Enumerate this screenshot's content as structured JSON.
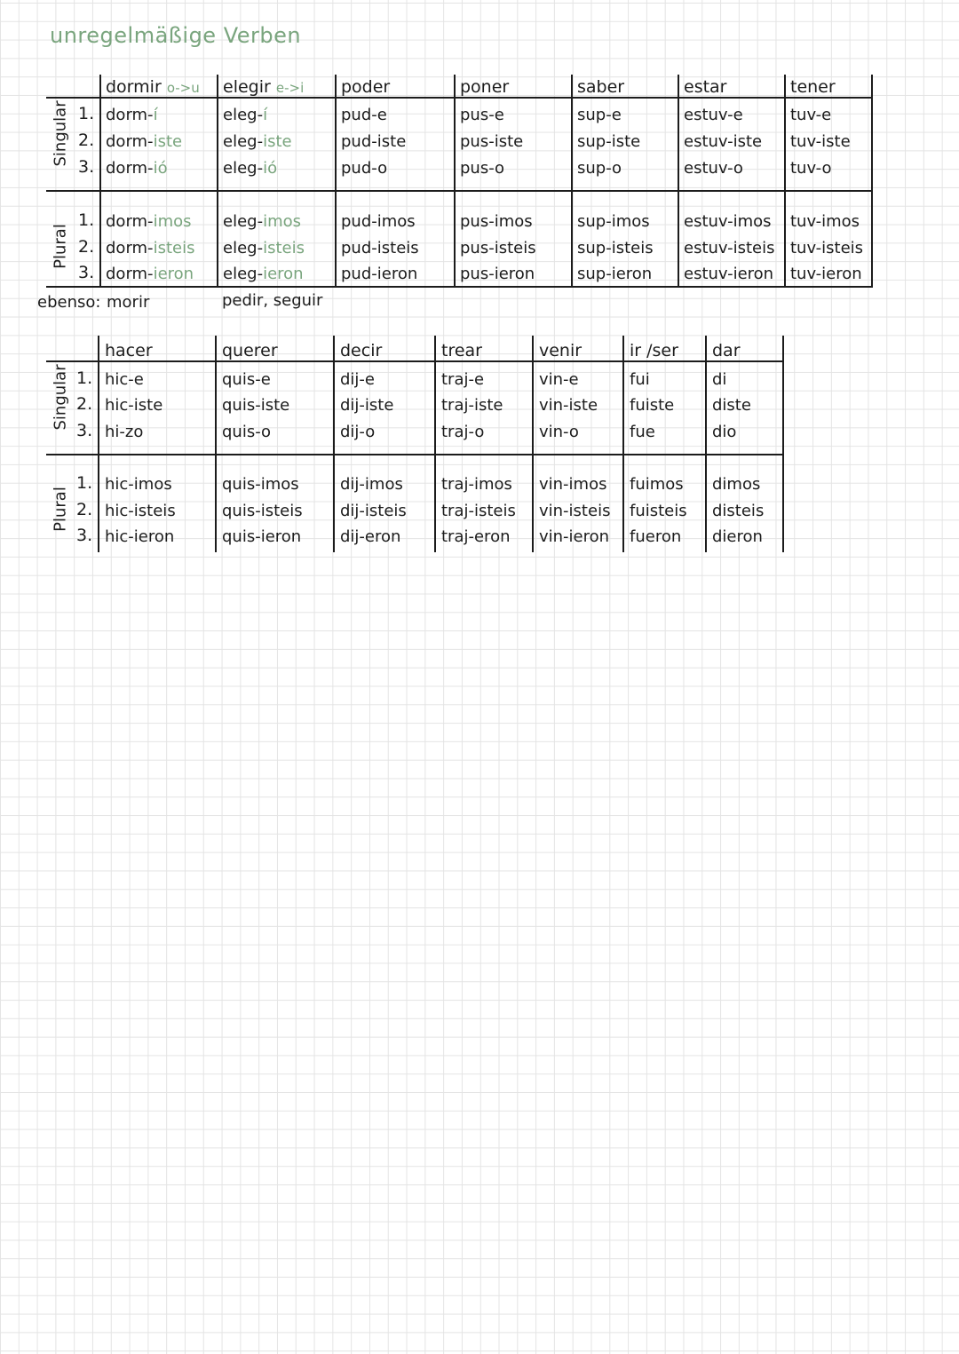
{
  "title": "unregelmäßige Verben",
  "colors": {
    "ink": "#1c1c1c",
    "accent": "#7aa57e"
  },
  "row_labels": {
    "singular": "Singular",
    "plural": "Plural",
    "numbers": [
      "1.",
      "2.",
      "3."
    ]
  },
  "table1": {
    "verbs": [
      {
        "name": "dormir",
        "note": "o->u",
        "forms": [
          [
            "dorm-",
            "í"
          ],
          [
            "dorm-",
            "iste"
          ],
          [
            "dorm-",
            "ió"
          ],
          [
            "dorm-",
            "imos"
          ],
          [
            "dorm-",
            "isteis"
          ],
          [
            "dorm-",
            "ieron"
          ]
        ]
      },
      {
        "name": "elegir",
        "note": "e->i",
        "forms": [
          [
            "eleg-",
            "í"
          ],
          [
            "eleg-",
            "iste"
          ],
          [
            "eleg-",
            "ió"
          ],
          [
            "eleg-",
            "imos"
          ],
          [
            "eleg-",
            "isteis"
          ],
          [
            "eleg-",
            "ieron"
          ]
        ]
      },
      {
        "name": "poder",
        "note": "",
        "forms": [
          [
            "pud-e",
            ""
          ],
          [
            "pud-iste",
            ""
          ],
          [
            "pud-o",
            ""
          ],
          [
            "pud-imos",
            ""
          ],
          [
            "pud-isteis",
            ""
          ],
          [
            "pud-ieron",
            ""
          ]
        ]
      },
      {
        "name": "poner",
        "note": "",
        "forms": [
          [
            "pus-e",
            ""
          ],
          [
            "pus-iste",
            ""
          ],
          [
            "pus-o",
            ""
          ],
          [
            "pus-imos",
            ""
          ],
          [
            "pus-isteis",
            ""
          ],
          [
            "pus-ieron",
            ""
          ]
        ]
      },
      {
        "name": "saber",
        "note": "",
        "forms": [
          [
            "sup-e",
            ""
          ],
          [
            "sup-iste",
            ""
          ],
          [
            "sup-o",
            ""
          ],
          [
            "sup-imos",
            ""
          ],
          [
            "sup-isteis",
            ""
          ],
          [
            "sup-ieron",
            ""
          ]
        ]
      },
      {
        "name": "estar",
        "note": "",
        "forms": [
          [
            "estuv-e",
            ""
          ],
          [
            "estuv-iste",
            ""
          ],
          [
            "estuv-o",
            ""
          ],
          [
            "estuv-imos",
            ""
          ],
          [
            "estuv-isteis",
            ""
          ],
          [
            "estuv-ieron",
            ""
          ]
        ]
      },
      {
        "name": "tener",
        "note": "",
        "forms": [
          [
            "tuv-e",
            ""
          ],
          [
            "tuv-iste",
            ""
          ],
          [
            "tuv-o",
            ""
          ],
          [
            "tuv-imos",
            ""
          ],
          [
            "tuv-isteis",
            ""
          ],
          [
            "tuv-ieron",
            ""
          ]
        ]
      }
    ],
    "ebenso_label": "ebenso:",
    "ebenso": [
      "morir",
      "pedir, seguir"
    ]
  },
  "table2": {
    "verbs": [
      {
        "name": "hacer",
        "note": "",
        "forms": [
          [
            "hic-e",
            ""
          ],
          [
            "hic-iste",
            ""
          ],
          [
            "hi-zo",
            ""
          ],
          [
            "hic-imos",
            ""
          ],
          [
            "hic-isteis",
            ""
          ],
          [
            "hic-ieron",
            ""
          ]
        ]
      },
      {
        "name": "querer",
        "note": "",
        "forms": [
          [
            "quis-e",
            ""
          ],
          [
            "quis-iste",
            ""
          ],
          [
            "quis-o",
            ""
          ],
          [
            "quis-imos",
            ""
          ],
          [
            "quis-isteis",
            ""
          ],
          [
            "quis-ieron",
            ""
          ]
        ]
      },
      {
        "name": "decir",
        "note": "",
        "forms": [
          [
            "dij-e",
            ""
          ],
          [
            "dij-iste",
            ""
          ],
          [
            "dij-o",
            ""
          ],
          [
            "dij-imos",
            ""
          ],
          [
            "dij-isteis",
            ""
          ],
          [
            "dij-eron",
            ""
          ]
        ]
      },
      {
        "name": "trear",
        "note": "",
        "forms": [
          [
            "traj-e",
            ""
          ],
          [
            "traj-iste",
            ""
          ],
          [
            "traj-o",
            ""
          ],
          [
            "traj-imos",
            ""
          ],
          [
            "traj-isteis",
            ""
          ],
          [
            "traj-eron",
            ""
          ]
        ]
      },
      {
        "name": "venir",
        "note": "",
        "forms": [
          [
            "vin-e",
            ""
          ],
          [
            "vin-iste",
            ""
          ],
          [
            "vin-o",
            ""
          ],
          [
            "vin-imos",
            ""
          ],
          [
            "vin-isteis",
            ""
          ],
          [
            "vin-ieron",
            ""
          ]
        ]
      },
      {
        "name": "ir /ser",
        "note": "",
        "forms": [
          [
            "fui",
            ""
          ],
          [
            "fuiste",
            ""
          ],
          [
            "fue",
            ""
          ],
          [
            "fuimos",
            ""
          ],
          [
            "fuisteis",
            ""
          ],
          [
            "fueron",
            ""
          ]
        ]
      },
      {
        "name": "dar",
        "note": "",
        "forms": [
          [
            "di",
            ""
          ],
          [
            "diste",
            ""
          ],
          [
            "dio",
            ""
          ],
          [
            "dimos",
            ""
          ],
          [
            "disteis",
            ""
          ],
          [
            "dieron",
            ""
          ]
        ]
      }
    ]
  }
}
